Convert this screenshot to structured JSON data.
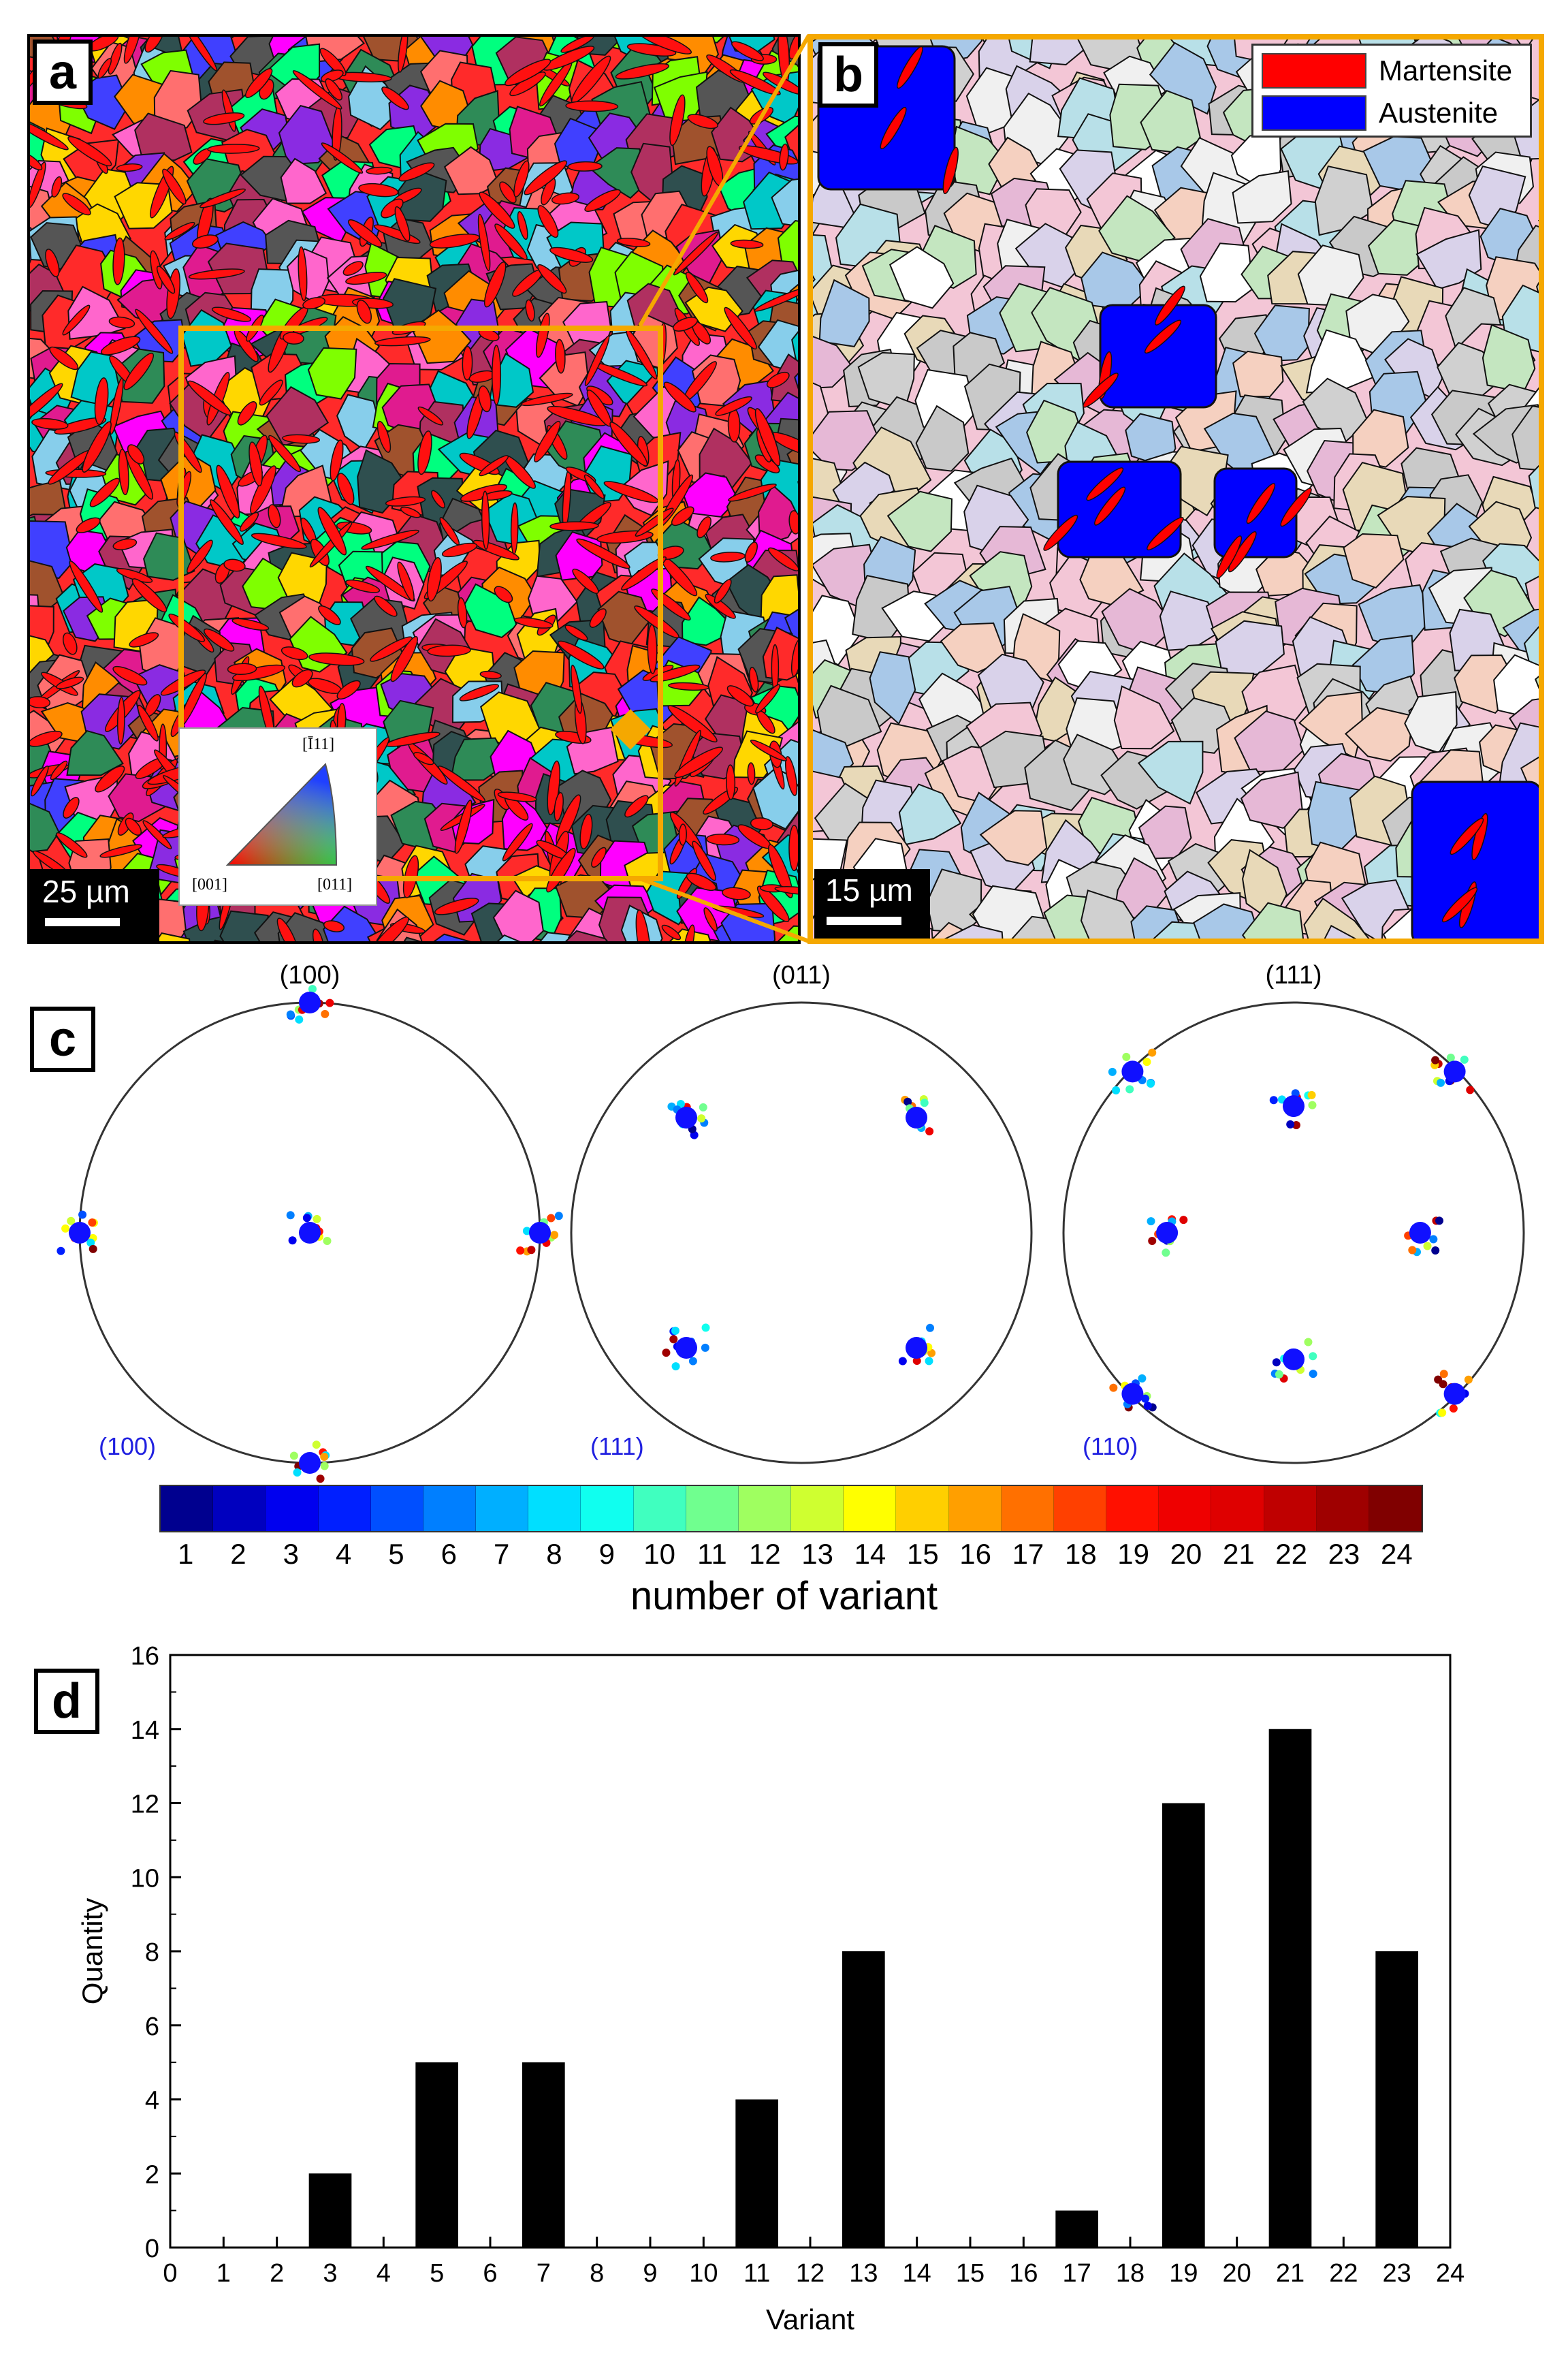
{
  "panels": {
    "a": {
      "label": "a",
      "scalebar": "25 µm",
      "ipf_key": {
        "top": "[Ī11]",
        "left": "[001]",
        "right": "[011]"
      }
    },
    "b": {
      "label": "b",
      "scalebar": "15 µm",
      "legend": [
        {
          "name": "Martensite",
          "color": "#ff0000"
        },
        {
          "name": "Austenite",
          "color": "#0000ff"
        }
      ]
    },
    "c": {
      "label": "c",
      "pole_figures": [
        {
          "title": "(100)",
          "ref": "(100)"
        },
        {
          "title": "(011)",
          "ref": "(111)"
        },
        {
          "title": "(111)",
          "ref": "(110)"
        }
      ],
      "colorbar": {
        "ticks": [
          "1",
          "2",
          "3",
          "4",
          "5",
          "6",
          "7",
          "8",
          "9",
          "10",
          "11",
          "12",
          "13",
          "14",
          "15",
          "16",
          "17",
          "18",
          "19",
          "20",
          "21",
          "22",
          "23",
          "24"
        ],
        "label": "number of variant",
        "colors": [
          "#00008f",
          "#0000bf",
          "#0000ef",
          "#001fff",
          "#004fff",
          "#007fff",
          "#00afff",
          "#00dfff",
          "#10ffef",
          "#40ffbf",
          "#70ff8f",
          "#9fff60",
          "#cfff30",
          "#ffff00",
          "#ffcf00",
          "#ff9f00",
          "#ff7000",
          "#ff4000",
          "#ff1000",
          "#ef0000",
          "#df0000",
          "#bf0000",
          "#9f0000",
          "#800000"
        ]
      }
    },
    "d": {
      "label": "d"
    }
  },
  "chart_data": {
    "type": "bar",
    "categories": [
      3,
      5,
      7,
      11,
      13,
      17,
      19,
      21,
      23
    ],
    "values": [
      2,
      5,
      5,
      4,
      8,
      1,
      12,
      14,
      8
    ],
    "xlabel": "Variant",
    "ylabel": "Quantity",
    "xlim": [
      0,
      24
    ],
    "ylim": [
      0,
      16
    ],
    "xticks": [
      "0",
      "1",
      "2",
      "3",
      "4",
      "5",
      "6",
      "7",
      "8",
      "9",
      "10",
      "11",
      "12",
      "13",
      "14",
      "15",
      "16",
      "17",
      "18",
      "19",
      "20",
      "21",
      "22",
      "23",
      "24"
    ],
    "yticks": [
      "0",
      "2",
      "4",
      "6",
      "8",
      "10",
      "12",
      "14",
      "16"
    ],
    "bar_color": "#000000",
    "grid": false
  }
}
